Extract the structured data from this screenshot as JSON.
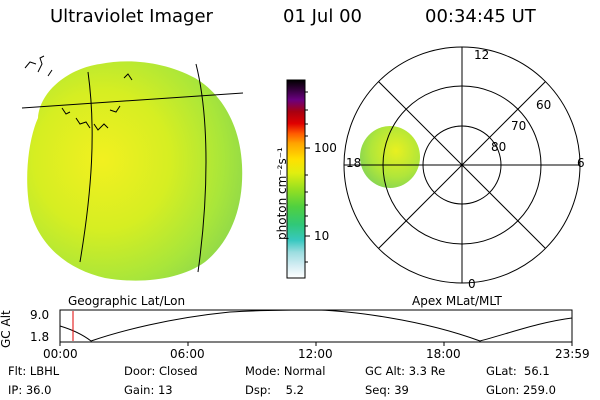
{
  "header": {
    "title": "Ultraviolet Imager",
    "date": "01 Jul 00",
    "time": "00:34:45 UT"
  },
  "left_panel": {
    "caption": "Geographic Lat/Lon"
  },
  "colorbar": {
    "unit_label": "photon cm⁻²s⁻¹",
    "ticks": [
      "100",
      "10"
    ],
    "colors": [
      "#101010",
      "#7a007a",
      "#c80000",
      "#ff5000",
      "#ffaa00",
      "#f0f000",
      "#a8e000",
      "#40d050",
      "#30c8c0",
      "#e8f4f8"
    ]
  },
  "polar_plot": {
    "caption": "Apex MLat/MLT",
    "mlt_labels": [
      "12",
      "18",
      "6",
      "0"
    ],
    "lat_labels": [
      "60",
      "70",
      "80"
    ]
  },
  "altitude_plot": {
    "ylabel": "GC Alt",
    "y_ticks": [
      "9.0",
      "1.8"
    ],
    "x_ticks": [
      "00:00",
      "06:00",
      "12:00",
      "18:00",
      "23:59"
    ]
  },
  "info": {
    "row1": {
      "filter": "Flt: LBHL",
      "door": "Door: Closed",
      "mode": "Mode: Normal",
      "gc_alt": "GC Alt: 3.3 Re",
      "glat": "GLat:  56.1"
    },
    "row2": {
      "ip": "IP: 36.0",
      "gain": "Gain: 13",
      "dsp": "Dsp:    5.2",
      "seq": "Seq: 39",
      "glon": "GLon: 259.0"
    }
  }
}
